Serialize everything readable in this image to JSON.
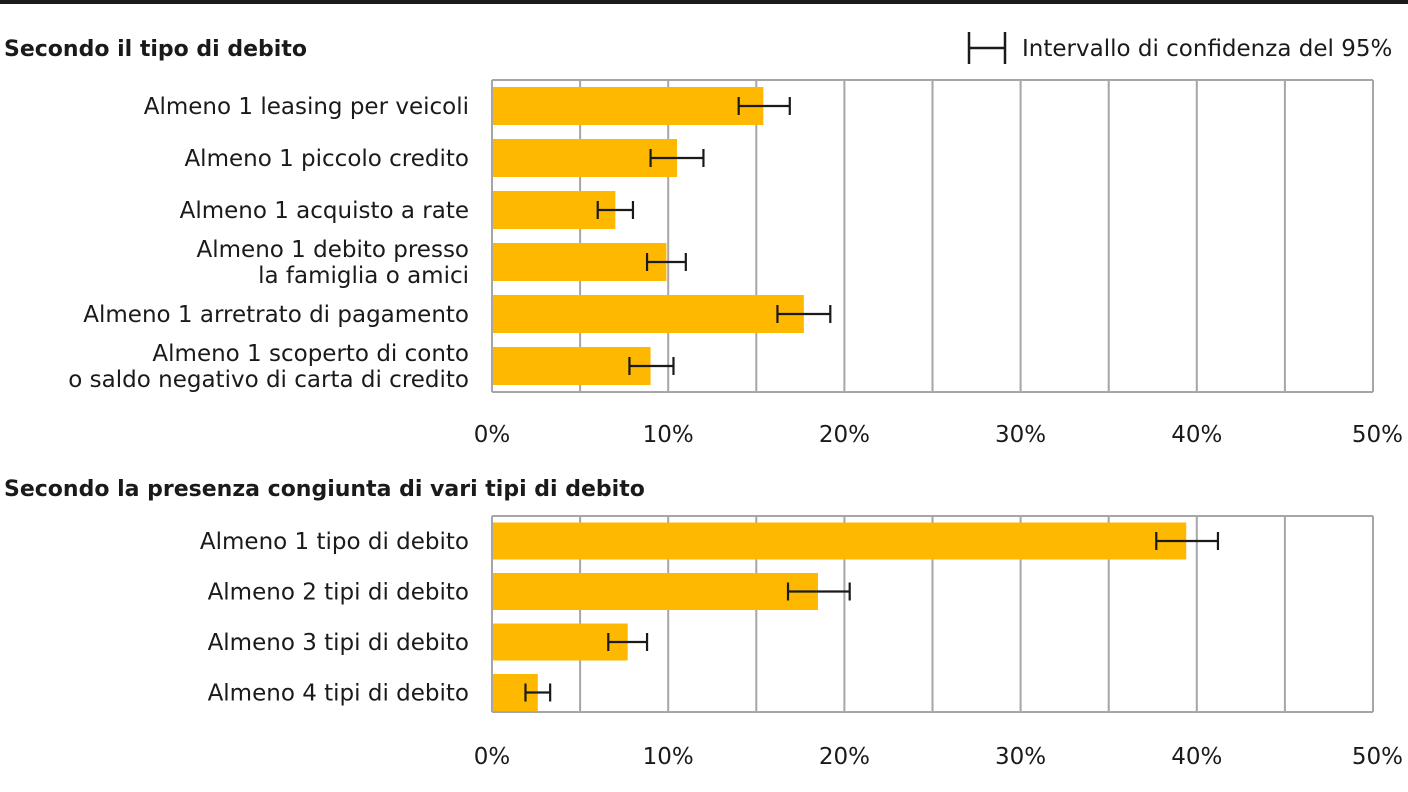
{
  "legend": {
    "label": "Intervallo di confidenza del 95%"
  },
  "colors": {
    "bar": "#FFB800",
    "grid": "#a6a6a6",
    "errorbar": "#1a1a1a"
  },
  "chart_data": [
    {
      "type": "bar",
      "orientation": "horizontal",
      "title": "Secondo il tipo di debito",
      "categories": [
        [
          "Almeno 1 leasing per veicoli"
        ],
        [
          "Almeno 1 piccolo credito"
        ],
        [
          "Almeno 1 acquisto a rate"
        ],
        [
          "Almeno 1 debito presso",
          "la famiglia o amici"
        ],
        [
          "Almeno 1 arretrato di pagamento"
        ],
        [
          "Almeno 1 scoperto di conto",
          "o saldo negativo di carta di credito"
        ]
      ],
      "values": [
        15.4,
        10.5,
        7.0,
        9.9,
        17.7,
        9.0
      ],
      "ci_low": [
        14.0,
        9.0,
        6.0,
        8.8,
        16.2,
        7.8
      ],
      "ci_high": [
        16.9,
        12.0,
        8.0,
        11.0,
        19.2,
        10.3
      ],
      "xlim": [
        0,
        50
      ],
      "xticks": [
        "0%",
        "10%",
        "20%",
        "30%",
        "40%",
        "50%"
      ],
      "grid": true
    },
    {
      "type": "bar",
      "orientation": "horizontal",
      "title": "Secondo la presenza congiunta di vari tipi di debito",
      "categories": [
        [
          "Almeno 1 tipo di debito"
        ],
        [
          "Almeno 2 tipi di debito"
        ],
        [
          "Almeno 3 tipi di debito"
        ],
        [
          "Almeno 4 tipi di debito"
        ]
      ],
      "values": [
        39.4,
        18.5,
        7.7,
        2.6
      ],
      "ci_low": [
        37.7,
        16.8,
        6.6,
        1.9
      ],
      "ci_high": [
        41.2,
        20.3,
        8.8,
        3.3
      ],
      "xlim": [
        0,
        50
      ],
      "xticks": [
        "0%",
        "10%",
        "20%",
        "30%",
        "40%",
        "50%"
      ],
      "grid": true
    }
  ]
}
